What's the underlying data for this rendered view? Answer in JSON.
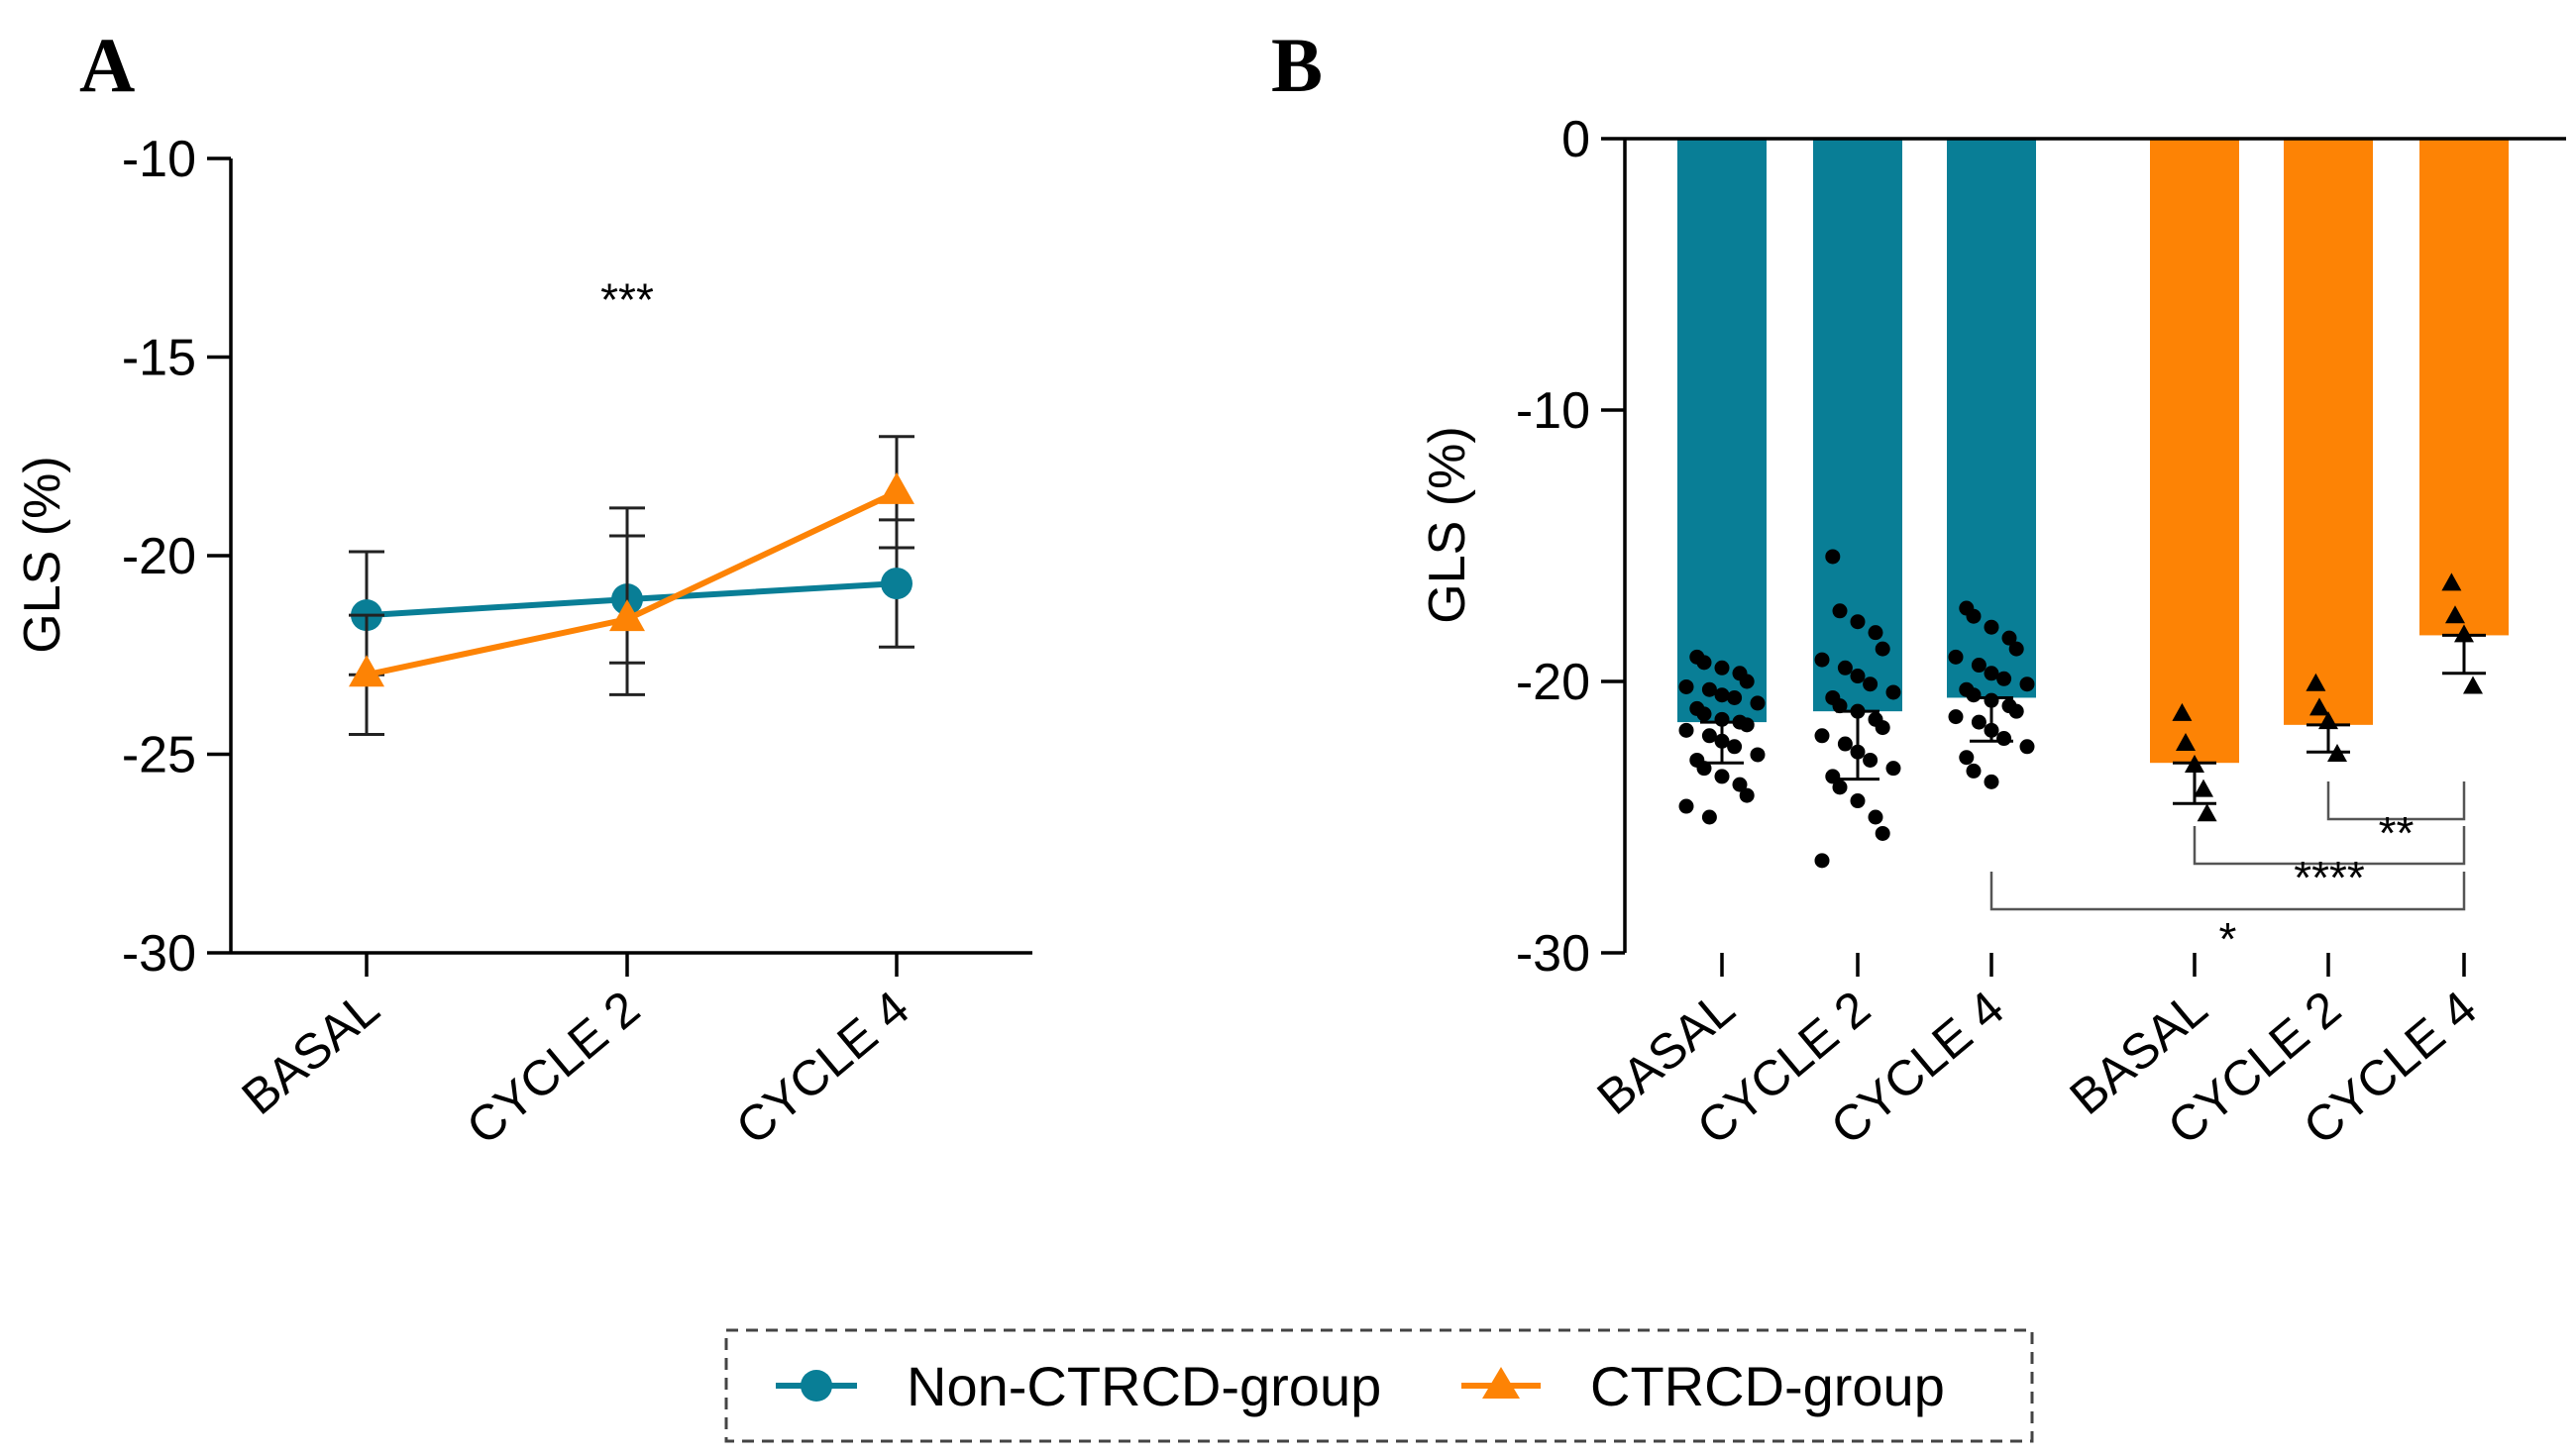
{
  "colors": {
    "non_ctrcd": "#097e96",
    "ctrcd": "#fd8305",
    "axis": "#000000"
  },
  "legend": {
    "entries": [
      {
        "name": "Non-CTRCD-group",
        "marker": "circle"
      },
      {
        "name": "CTRCD-group",
        "marker": "triangle"
      }
    ]
  },
  "chart_data": [
    {
      "panel": "A",
      "type": "line",
      "ylabel": "GLS (%)",
      "xlabel": "",
      "ylim": [
        -30,
        -10
      ],
      "yticks": [
        -10,
        -15,
        -20,
        -25,
        -30
      ],
      "categories": [
        "BASAL",
        "CYCLE 2",
        "CYCLE 4"
      ],
      "series": [
        {
          "name": "Non-CTRCD-group",
          "values": [
            -21.5,
            -21.1,
            -20.7
          ],
          "err_low": [
            -23.0,
            -22.7,
            -22.3
          ],
          "err_high": [
            -19.9,
            -19.5,
            -19.1
          ]
        },
        {
          "name": "CTRCD-group",
          "values": [
            -23.0,
            -21.6,
            -18.4
          ],
          "err_low": [
            -24.5,
            -23.5,
            -19.8
          ],
          "err_high": [
            -21.5,
            -18.8,
            -17.0
          ]
        }
      ],
      "annotations": [
        {
          "text": "***",
          "category": "CYCLE 2",
          "y": -13.2
        }
      ]
    },
    {
      "panel": "B",
      "type": "bar",
      "ylabel": "GLS  (%)",
      "xlabel": "",
      "ylim": [
        -30,
        0
      ],
      "yticks": [
        0,
        -10,
        -20,
        -30
      ],
      "categories": [
        "BASAL",
        "CYCLE 2",
        "CYCLE 4",
        "BASAL",
        "CYCLE 2",
        "CYCLE 4"
      ],
      "bars": [
        {
          "group": "Non-CTRCD-group",
          "value": -21.5,
          "sd_low": -23.0,
          "points": [
            -19.1,
            -19.3,
            -19.5,
            -19.7,
            -20.0,
            -20.2,
            -20.3,
            -20.5,
            -20.6,
            -20.8,
            -21.0,
            -21.2,
            -21.4,
            -21.5,
            -21.6,
            -21.8,
            -22.0,
            -22.2,
            -22.4,
            -22.7,
            -22.9,
            -23.2,
            -23.5,
            -23.8,
            -24.2,
            -24.6,
            -25.0
          ]
        },
        {
          "group": "Non-CTRCD-group",
          "value": -21.1,
          "sd_low": -23.6,
          "points": [
            -15.4,
            -17.4,
            -17.8,
            -18.2,
            -18.8,
            -19.2,
            -19.5,
            -19.8,
            -20.1,
            -20.4,
            -20.6,
            -20.9,
            -21.1,
            -21.4,
            -21.7,
            -22.0,
            -22.3,
            -22.6,
            -22.9,
            -23.2,
            -23.5,
            -23.9,
            -24.4,
            -25.0,
            -25.6,
            -26.6
          ]
        },
        {
          "group": "Non-CTRCD-group",
          "value": -20.6,
          "sd_low": -22.2,
          "points": [
            -17.3,
            -17.6,
            -18.0,
            -18.4,
            -18.8,
            -19.1,
            -19.4,
            -19.7,
            -19.9,
            -20.1,
            -20.3,
            -20.5,
            -20.7,
            -20.9,
            -21.1,
            -21.3,
            -21.5,
            -21.8,
            -22.1,
            -22.4,
            -22.8,
            -23.3,
            -23.7
          ]
        },
        {
          "group": "CTRCD-group",
          "value": -23.0,
          "sd_low": -24.5,
          "points": [
            -21.2,
            -22.3,
            -23.1,
            -24.0,
            -24.9
          ]
        },
        {
          "group": "CTRCD-group",
          "value": -21.6,
          "sd_low": -22.6,
          "points": [
            -20.1,
            -21.0,
            -21.5,
            -22.7
          ]
        },
        {
          "group": "CTRCD-group",
          "value": -18.3,
          "sd_low": -19.7,
          "points": [
            -16.4,
            -17.6,
            -18.3,
            -20.2
          ]
        }
      ],
      "brackets": [
        {
          "from_bar": 4,
          "to_bar": 5,
          "label": "**"
        },
        {
          "from_bar": 3,
          "to_bar": 5,
          "label": "****"
        },
        {
          "from_bar": 2,
          "to_bar": 5,
          "label": "*"
        }
      ]
    }
  ]
}
